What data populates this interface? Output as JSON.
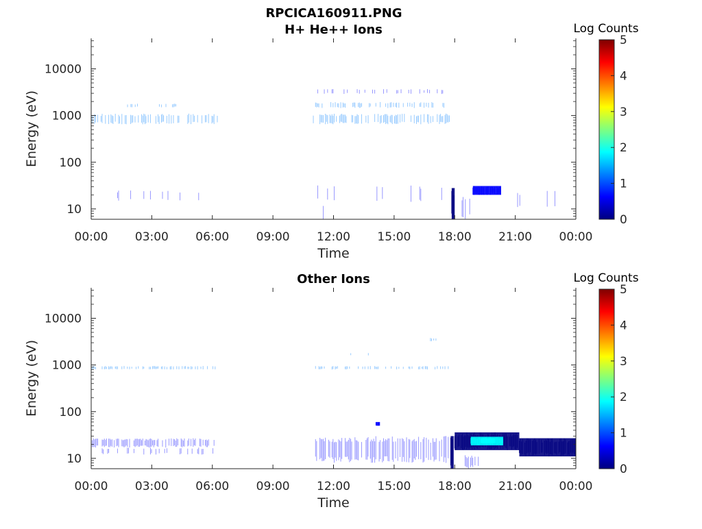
{
  "figure": {
    "title_line1": "RPCICA160911.PNG",
    "colorbar_label": "Log Counts",
    "colormap": [
      "#00007f",
      "#0000ff",
      "#007fff",
      "#00ffff",
      "#7fff7f",
      "#ffff00",
      "#ff7f00",
      "#ff0000",
      "#7f0000"
    ]
  },
  "chart_data": [
    {
      "type": "heatmap",
      "title": "H+ He++ Ions",
      "xlabel": "Time",
      "ylabel": "Energy (eV)",
      "x_ticks": [
        "00:00",
        "03:00",
        "06:00",
        "09:00",
        "12:00",
        "15:00",
        "18:00",
        "21:00",
        "00:00"
      ],
      "x_range_hours": [
        0,
        24
      ],
      "y_scale": "log",
      "y_range": [
        6,
        45000
      ],
      "y_ticks": [
        {
          "value": 10,
          "label": "10"
        },
        {
          "value": 100,
          "label": "100"
        },
        {
          "value": 1000,
          "label": "1000"
        },
        {
          "value": 10000,
          "label": "10000"
        }
      ],
      "colorbar": {
        "range": [
          0,
          5
        ],
        "ticks": [
          "0",
          "1",
          "2",
          "3",
          "4",
          "5"
        ]
      },
      "regions": [
        {
          "t_start": 0.0,
          "t_end": 6.25,
          "e_min": 650,
          "e_max": 1100,
          "log_counts": 1.1,
          "density": 0.55
        },
        {
          "t_start": 1.8,
          "t_end": 4.6,
          "e_min": 1500,
          "e_max": 1800,
          "log_counts": 1.1,
          "density": 0.2
        },
        {
          "t_start": 11.0,
          "t_end": 17.8,
          "e_min": 650,
          "e_max": 1100,
          "log_counts": 1.1,
          "density": 0.55
        },
        {
          "t_start": 11.0,
          "t_end": 17.8,
          "e_min": 1450,
          "e_max": 1950,
          "log_counts": 1.0,
          "density": 0.4
        },
        {
          "t_start": 11.0,
          "t_end": 17.8,
          "e_min": 2900,
          "e_max": 3700,
          "log_counts": 0.9,
          "density": 0.2
        },
        {
          "t_start": 11.0,
          "t_end": 17.5,
          "e_min": 14,
          "e_max": 32,
          "log_counts": 0.9,
          "density": 0.1
        },
        {
          "t_start": 11.0,
          "t_end": 11.5,
          "e_min": 6,
          "e_max": 14,
          "log_counts": 0.9,
          "density": 0.3
        },
        {
          "t_start": 0.0,
          "t_end": 6.0,
          "e_min": 15,
          "e_max": 25,
          "log_counts": 0.9,
          "density": 0.05
        },
        {
          "t_start": 17.85,
          "t_end": 18.0,
          "e_min": 6,
          "e_max": 28,
          "log_counts": 0.3,
          "density": 1.0
        },
        {
          "t_start": 18.2,
          "t_end": 19.0,
          "e_min": 6,
          "e_max": 18,
          "log_counts": 0.6,
          "density": 0.4
        },
        {
          "t_start": 18.9,
          "t_end": 20.3,
          "e_min": 20,
          "e_max": 31,
          "log_counts": 0.4,
          "density": 0.85
        },
        {
          "t_start": 20.3,
          "t_end": 24.0,
          "e_min": 10,
          "e_max": 25,
          "log_counts": 0.9,
          "density": 0.05
        }
      ]
    },
    {
      "type": "heatmap",
      "title": "Other Ions",
      "xlabel": "Time",
      "ylabel": "Energy (eV)",
      "x_ticks": [
        "00:00",
        "03:00",
        "06:00",
        "09:00",
        "12:00",
        "15:00",
        "18:00",
        "21:00",
        "00:00"
      ],
      "x_range_hours": [
        0,
        24
      ],
      "y_scale": "log",
      "y_range": [
        6,
        45000
      ],
      "y_ticks": [
        {
          "value": 10,
          "label": "10"
        },
        {
          "value": 100,
          "label": "100"
        },
        {
          "value": 1000,
          "label": "1000"
        },
        {
          "value": 10000,
          "label": "10000"
        }
      ],
      "colorbar": {
        "range": [
          0,
          5
        ],
        "ticks": [
          "0",
          "1",
          "2",
          "3",
          "4",
          "5"
        ]
      },
      "regions": [
        {
          "t_start": 0.0,
          "t_end": 6.25,
          "e_min": 800,
          "e_max": 950,
          "log_counts": 1.0,
          "density": 0.35
        },
        {
          "t_start": 11.0,
          "t_end": 17.8,
          "e_min": 800,
          "e_max": 950,
          "log_counts": 1.0,
          "density": 0.35
        },
        {
          "t_start": 12.8,
          "t_end": 14.0,
          "e_min": 1600,
          "e_max": 1800,
          "log_counts": 1.0,
          "density": 0.2
        },
        {
          "t_start": 16.8,
          "t_end": 17.3,
          "e_min": 3200,
          "e_max": 3800,
          "log_counts": 1.0,
          "density": 0.3
        },
        {
          "t_start": 14.1,
          "t_end": 14.3,
          "e_min": 50,
          "e_max": 60,
          "log_counts": 0.8,
          "density": 0.8
        },
        {
          "t_start": 0.0,
          "t_end": 6.25,
          "e_min": 17,
          "e_max": 27,
          "log_counts": 0.6,
          "density": 0.7
        },
        {
          "t_start": 0.0,
          "t_end": 6.25,
          "e_min": 12,
          "e_max": 17,
          "log_counts": 0.8,
          "density": 0.2
        },
        {
          "t_start": 11.0,
          "t_end": 17.8,
          "e_min": 8,
          "e_max": 30,
          "log_counts": 0.6,
          "density": 0.7
        },
        {
          "t_start": 17.8,
          "t_end": 17.95,
          "e_min": 6,
          "e_max": 30,
          "log_counts": 0.2,
          "density": 1.0
        },
        {
          "t_start": 18.0,
          "t_end": 21.2,
          "e_min": 15,
          "e_max": 36,
          "log_counts": 0.3,
          "density": 0.9
        },
        {
          "t_start": 18.8,
          "t_end": 20.4,
          "e_min": 19,
          "e_max": 29,
          "log_counts": 1.8,
          "density": 0.9
        },
        {
          "t_start": 19.3,
          "t_end": 20.0,
          "e_min": 21,
          "e_max": 27,
          "log_counts": 2.1,
          "density": 0.9
        },
        {
          "t_start": 21.2,
          "t_end": 24.0,
          "e_min": 11,
          "e_max": 27,
          "log_counts": 0.3,
          "density": 0.8
        },
        {
          "t_start": 18.3,
          "t_end": 19.2,
          "e_min": 6,
          "e_max": 12,
          "log_counts": 0.8,
          "density": 0.35
        }
      ]
    }
  ]
}
